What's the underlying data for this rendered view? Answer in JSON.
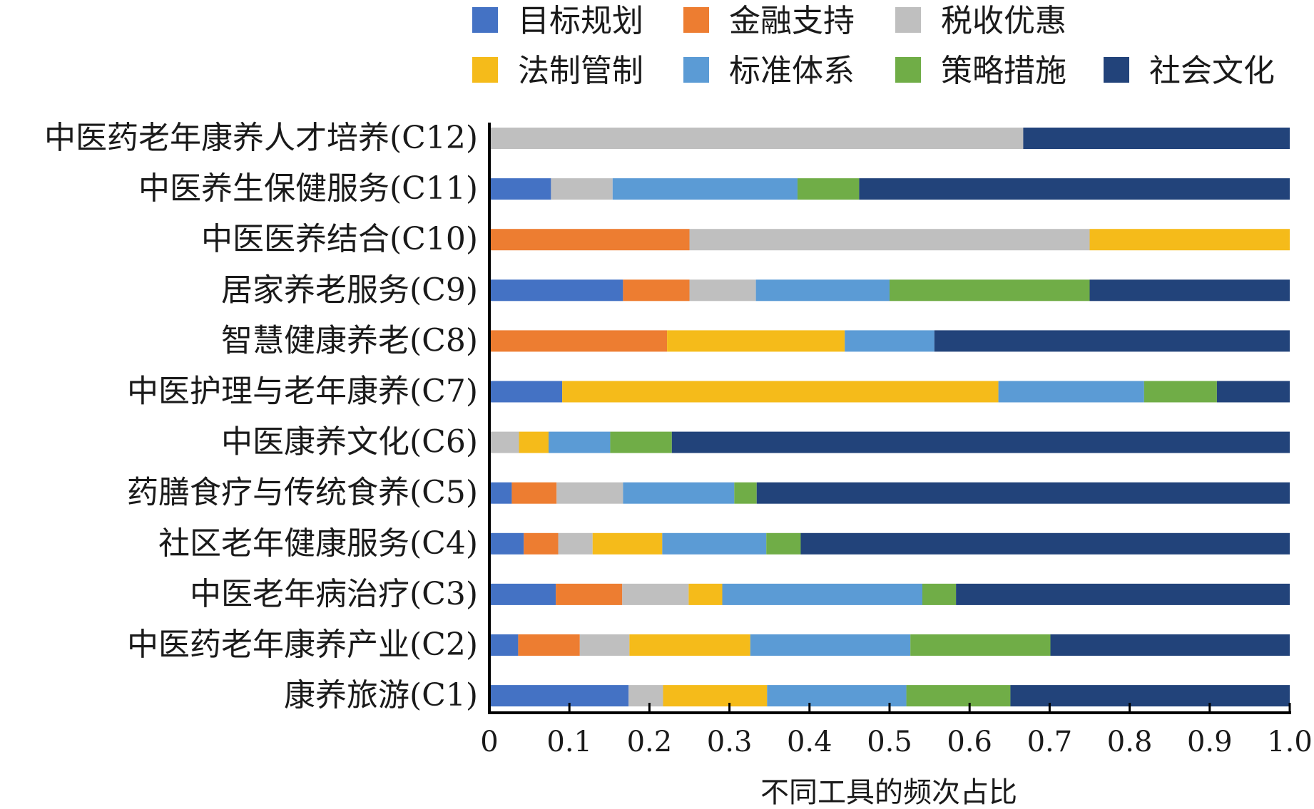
{
  "chart_data": {
    "type": "bar",
    "orientation": "horizontal",
    "stacked": true,
    "categories": [
      "中医药老年康养人才培养(C12)",
      "中医养生保健服务(C11)",
      "中医医养结合(C10)",
      "居家养老服务(C9)",
      "智慧健康养老(C8)",
      "中医护理与老年康养(C7)",
      "中医康养文化(C6)",
      "药膳食疗与传统食养(C5)",
      "社区老年健康服务(C4)",
      "中医老年病治疗(C3)",
      "中医药老年康养产业(C2)",
      "康养旅游(C1)"
    ],
    "series": [
      {
        "name": "目标规划",
        "color": "#4472C4",
        "values": [
          0,
          0.077,
          0,
          0.167,
          0,
          0.091,
          0,
          0.028,
          0.043,
          0.083,
          0.036,
          0.174
        ]
      },
      {
        "name": "金融支持",
        "color": "#ED7D31",
        "values": [
          0,
          0,
          0.25,
          0.083,
          0.222,
          0,
          0,
          0.056,
          0.043,
          0.083,
          0.077,
          0
        ]
      },
      {
        "name": "税收优惠",
        "color": "#BFBFBF",
        "values": [
          0.667,
          0.077,
          0.5,
          0.083,
          0,
          0,
          0.037,
          0.083,
          0.043,
          0.083,
          0.062,
          0.043
        ]
      },
      {
        "name": "法制管制",
        "color": "#F5BB1A",
        "values": [
          0,
          0,
          0.25,
          0,
          0.222,
          0.545,
          0.037,
          0,
          0.087,
          0.042,
          0.151,
          0.13
        ]
      },
      {
        "name": "标准体系",
        "color": "#5B9BD5",
        "values": [
          0,
          0.231,
          0,
          0.167,
          0.112,
          0.182,
          0.077,
          0.139,
          0.13,
          0.25,
          0.2,
          0.174
        ]
      },
      {
        "name": "策略措施",
        "color": "#70AD47",
        "values": [
          0,
          0.077,
          0,
          0.25,
          0,
          0.091,
          0.077,
          0.028,
          0.043,
          0.042,
          0.175,
          0.13
        ]
      },
      {
        "name": "社会文化",
        "color": "#22437A",
        "values": [
          0.333,
          0.538,
          0,
          0.25,
          0.444,
          0.091,
          0.772,
          0.666,
          0.611,
          0.417,
          0.299,
          0.349
        ]
      }
    ],
    "xlabel": "不同工具的频次占比",
    "ylabel": "",
    "xlim": [
      0,
      1.0
    ],
    "xticks": [
      "0",
      "0.1",
      "0.2",
      "0.3",
      "0.4",
      "0.5",
      "0.6",
      "0.7",
      "0.8",
      "0.9",
      "1.0"
    ],
    "legend_position": "top",
    "grid": false
  }
}
